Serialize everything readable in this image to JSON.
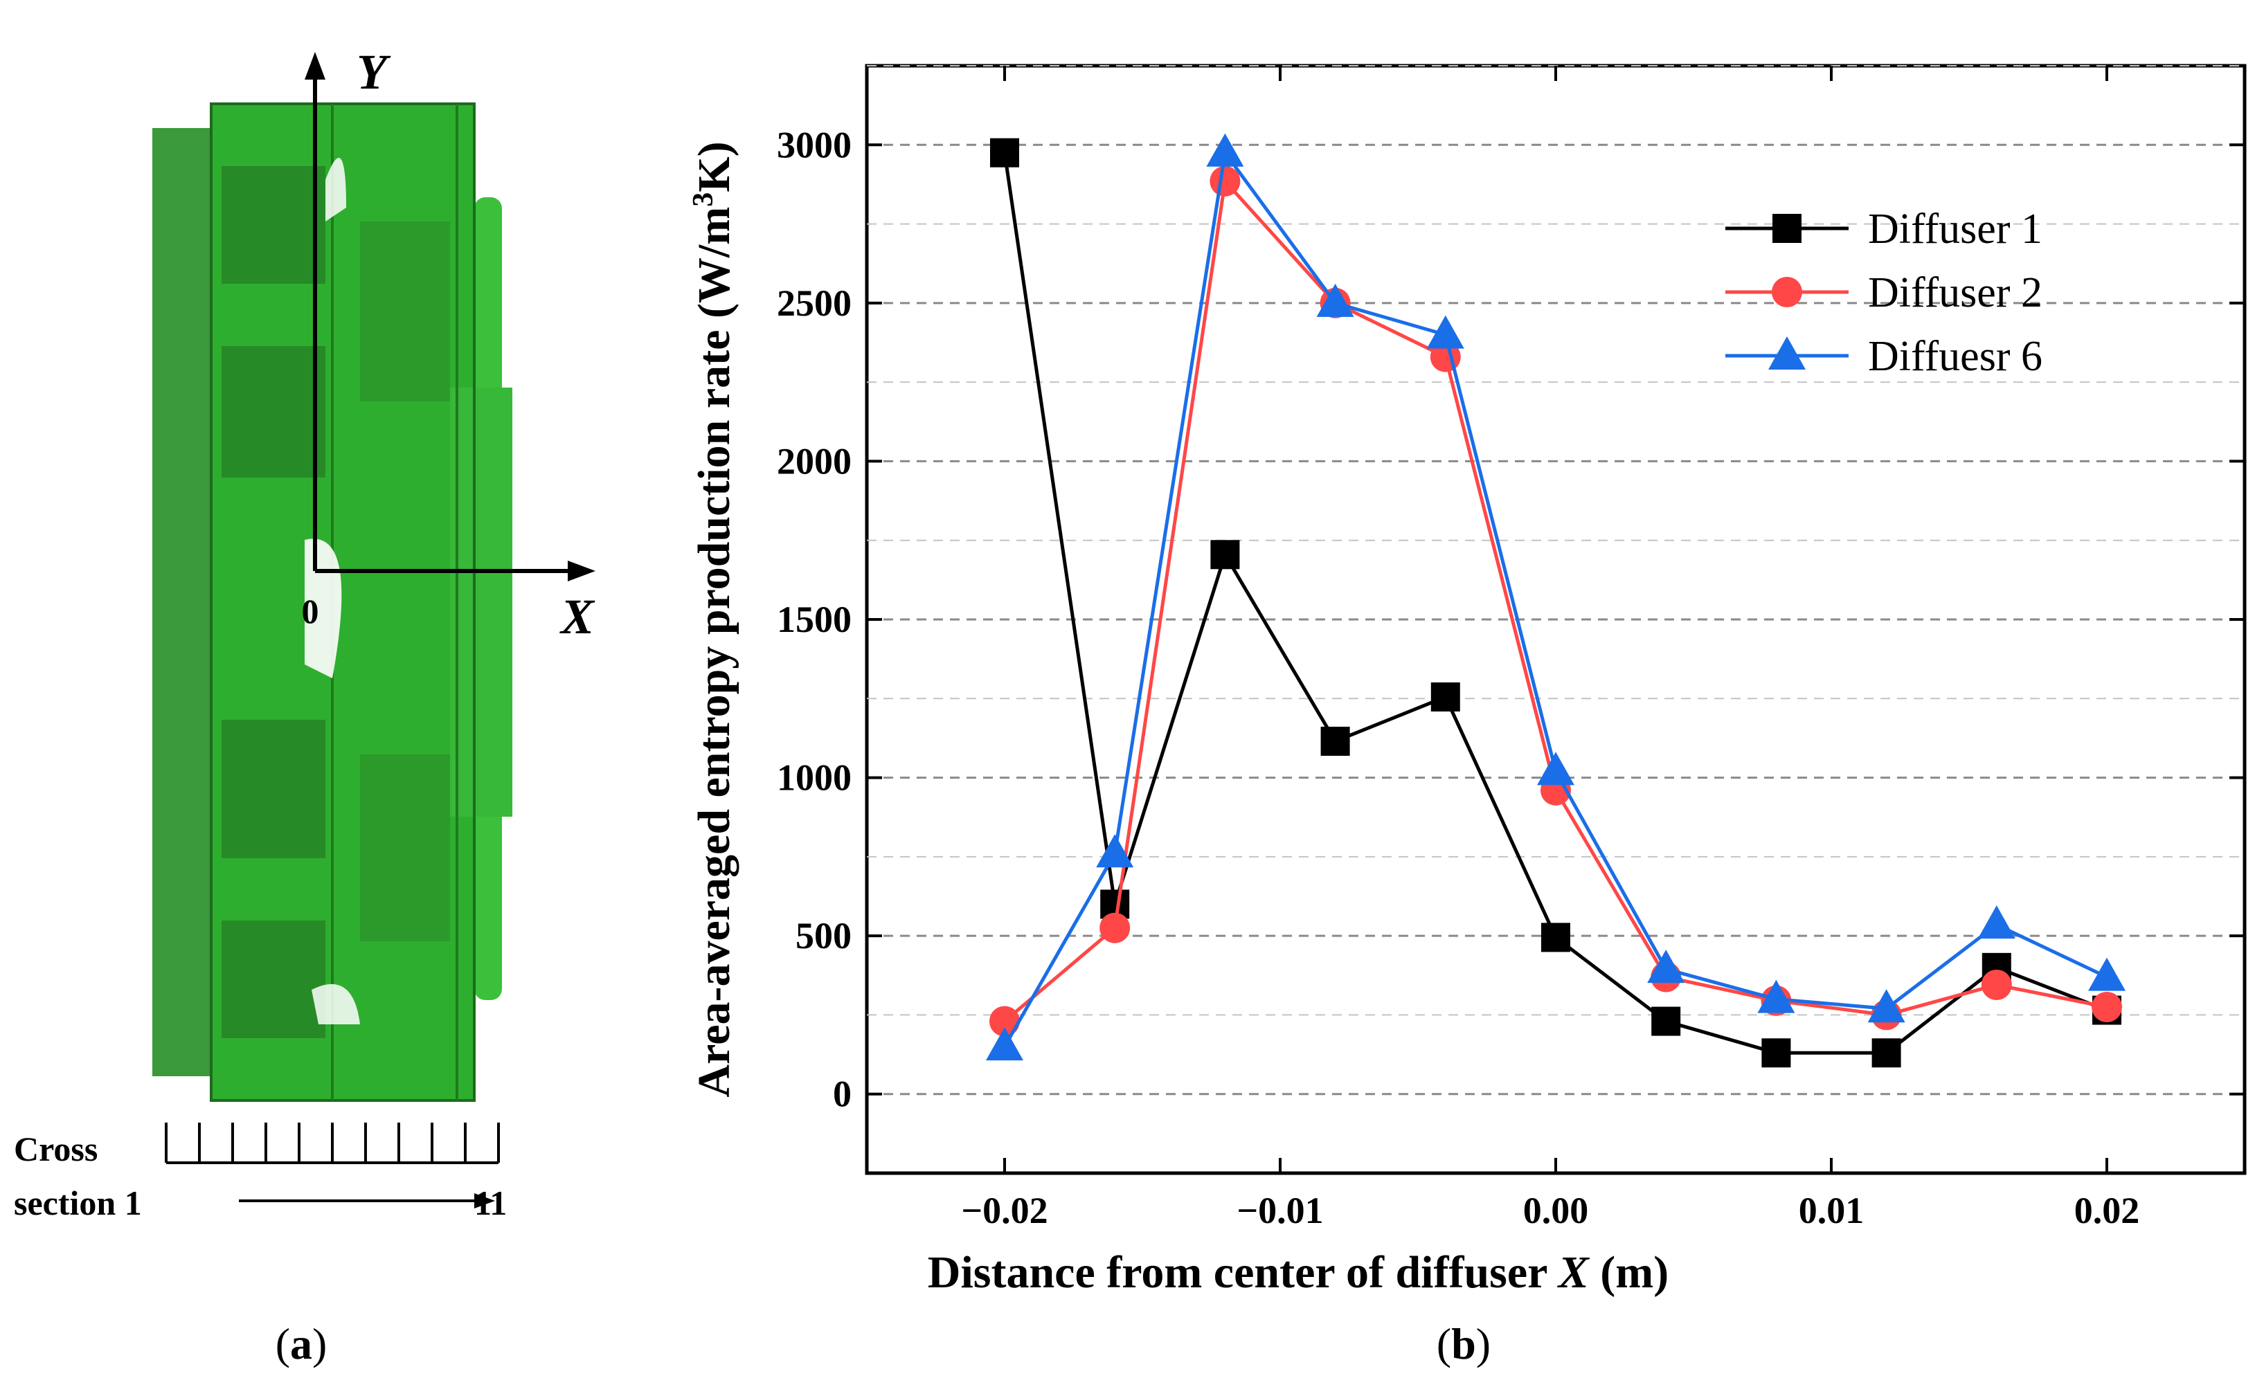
{
  "panel_a": {
    "y_axis_label": "Y",
    "x_axis_label": "X",
    "origin_label": "0",
    "cross_section_line1": "Cross",
    "cross_section_line2": "section 1",
    "cross_section_end": "11",
    "caption_open": "(",
    "caption_letter": "a",
    "caption_close": ")",
    "model_color": "#2eae2e"
  },
  "panel_b": {
    "caption_open": "(",
    "caption_letter": "b",
    "caption_close": ")"
  },
  "chart_data": {
    "type": "line",
    "title": "",
    "xlabel_prefix": "Distance from center of diffuser ",
    "xlabel_var": "X",
    "xlabel_suffix": " (m)",
    "ylabel_main": "Area-averaged entropy production rate (W/m",
    "ylabel_sup": "3",
    "ylabel_end": "K)",
    "xlim": [
      -0.025,
      0.025
    ],
    "ylim": [
      -250,
      3250
    ],
    "xticks": [
      -0.02,
      -0.01,
      0.0,
      0.01,
      0.02
    ],
    "xtick_labels": [
      "−0.02",
      "−0.01",
      "0.00",
      "0.01",
      "0.02"
    ],
    "yticks": [
      0,
      500,
      1000,
      1500,
      2000,
      2500,
      3000
    ],
    "ytick_labels": [
      "0",
      "500",
      "1000",
      "1500",
      "2000",
      "2500",
      "3000"
    ],
    "grid": "horizontal-dashed",
    "legend_position": "top-right",
    "x": [
      -0.02,
      -0.016,
      -0.012,
      -0.008,
      -0.004,
      0.0,
      0.004,
      0.008,
      0.012,
      0.016,
      0.02
    ],
    "series": [
      {
        "name": "Diffuser 1",
        "color": "#000000",
        "marker": "square",
        "values": [
          2975,
          600,
          1705,
          1115,
          1255,
          495,
          230,
          130,
          130,
          400,
          265
        ]
      },
      {
        "name": "Diffuser 2",
        "color": "#ff4747",
        "marker": "circle",
        "values": [
          230,
          525,
          2885,
          2500,
          2330,
          960,
          370,
          295,
          250,
          345,
          275
        ]
      },
      {
        "name": "Diffuesr 6",
        "color": "#1a6ee8",
        "marker": "triangle",
        "values": [
          150,
          760,
          2975,
          2500,
          2400,
          1020,
          395,
          300,
          270,
          535,
          370
        ]
      }
    ]
  }
}
